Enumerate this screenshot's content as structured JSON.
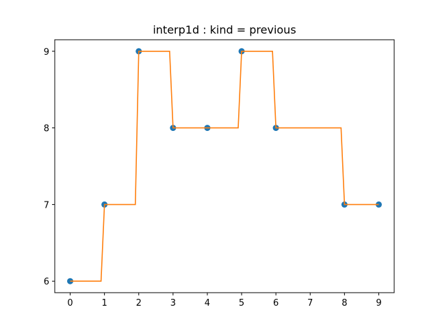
{
  "chart_data": {
    "type": "line",
    "title": "interp1d : kind = previous",
    "xlabel": "",
    "ylabel": "",
    "xlim": [
      -0.45,
      9.45
    ],
    "ylim": [
      5.85,
      9.15
    ],
    "x_ticks": [
      0,
      1,
      2,
      3,
      4,
      5,
      6,
      7,
      8,
      9
    ],
    "y_ticks": [
      6,
      7,
      8,
      9
    ],
    "grid": false,
    "series": [
      {
        "kind": "scatter",
        "color": "#1f77b4",
        "x": [
          0,
          1,
          2,
          3,
          4,
          5,
          6,
          7,
          8,
          9
        ],
        "y": [
          6,
          7,
          9,
          8,
          8,
          9,
          8,
          null,
          7,
          7
        ]
      },
      {
        "kind": "line",
        "color": "#ff7f0e",
        "x": [
          0,
          0.9,
          1,
          1.9,
          2,
          2.9,
          3,
          3.9,
          4,
          4.9,
          5,
          5.9,
          6,
          7.9,
          8,
          9
        ],
        "y": [
          6,
          6,
          7,
          7,
          9,
          9,
          8,
          8,
          8,
          8,
          9,
          9,
          8,
          8,
          7,
          7
        ]
      }
    ]
  }
}
